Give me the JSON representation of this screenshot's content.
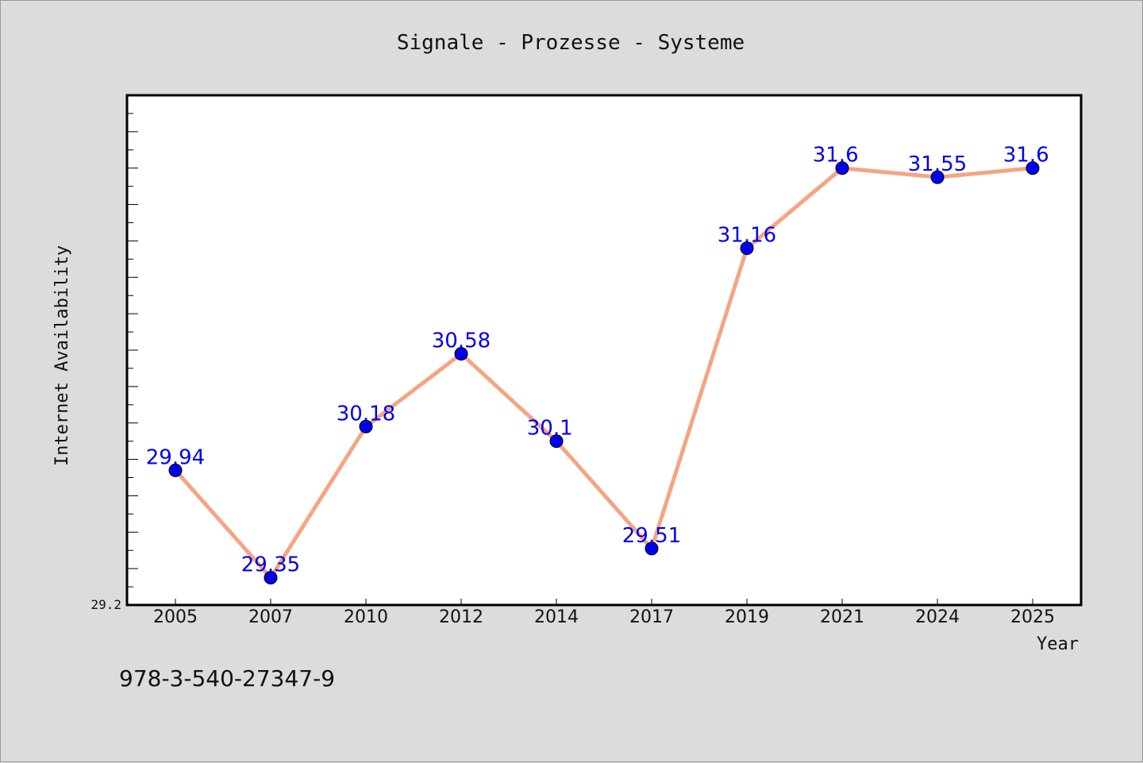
{
  "chart_data": {
    "type": "line",
    "title": "Signale - Prozesse - Systeme",
    "xlabel": "Year",
    "ylabel": "Internet Availability",
    "categories": [
      "2005",
      "2007",
      "2010",
      "2012",
      "2014",
      "2017",
      "2019",
      "2021",
      "2024",
      "2025"
    ],
    "series": [
      {
        "values": [
          29.94,
          29.35,
          30.18,
          30.58,
          30.1,
          29.51,
          31.16,
          31.6,
          31.55,
          31.6
        ]
      }
    ],
    "data_labels": [
      "29.94",
      "29.35",
      "30.18",
      "30.58",
      "30.1",
      "29.51",
      "31.16",
      "31.6",
      "31.55",
      "31.6"
    ],
    "y_tick_labels": [
      "29.2"
    ],
    "ylim": [
      29.2,
      32.0
    ],
    "grid": false,
    "legend": "none",
    "colors": {
      "line": "#f4a582",
      "marker": "#0000ee",
      "marker_edge": "#000000",
      "data_label": "#0000ee",
      "plot_background": "#ffffff",
      "figure_background": "#dcdcdc"
    }
  },
  "footnote": "978-3-540-27347-9"
}
